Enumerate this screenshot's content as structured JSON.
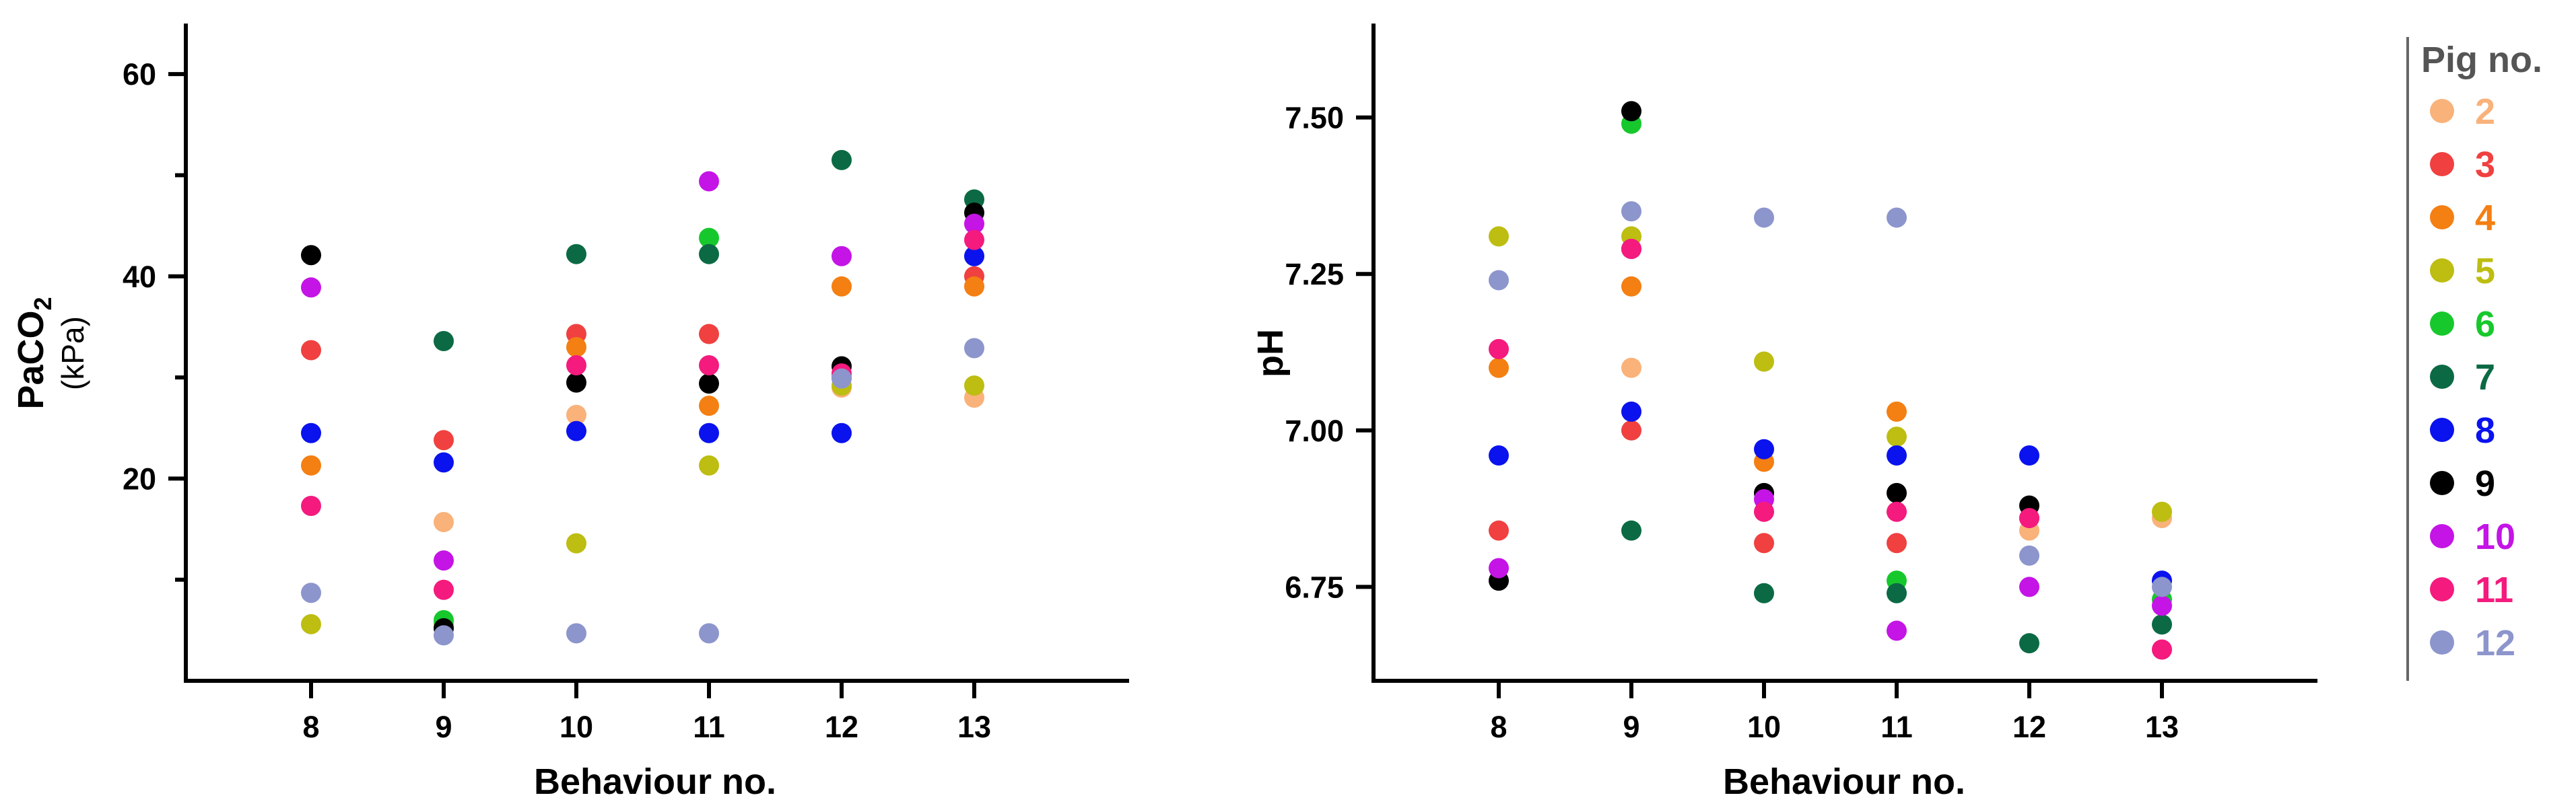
{
  "chart_data": [
    {
      "type": "scatter",
      "title": "",
      "xlabel": "Behaviour no.",
      "ylabel": "PaCO",
      "ylabel_sub": "2",
      "ylabel_unit": "(kPa)",
      "categories": [
        "8",
        "9",
        "10",
        "11",
        "12",
        "13"
      ],
      "x_ticks": [
        "8",
        "9",
        "10",
        "11",
        "12",
        "13"
      ],
      "y_tick_labels": [
        "20",
        "40",
        "60"
      ],
      "y_tick_values": [
        20,
        40,
        60
      ],
      "y_minor_ticks": [
        10,
        30,
        50
      ],
      "ylim": [
        0,
        65
      ],
      "grid": false,
      "series": [
        {
          "name": "2",
          "values": [
            null,
            15.7,
            26.3,
            null,
            29.0,
            28.0
          ]
        },
        {
          "name": "3",
          "values": [
            32.7,
            23.8,
            34.3,
            34.3,
            30.0,
            40.0
          ]
        },
        {
          "name": "4",
          "values": [
            21.3,
            null,
            33.0,
            27.2,
            39.0,
            39.0
          ]
        },
        {
          "name": "5",
          "values": [
            5.6,
            5.6,
            13.6,
            21.3,
            29.2,
            29.2
          ]
        },
        {
          "name": "6",
          "values": [
            null,
            6.0,
            null,
            43.8,
            null,
            null
          ]
        },
        {
          "name": "7",
          "values": [
            null,
            33.6,
            42.2,
            42.2,
            51.5,
            47.6
          ]
        },
        {
          "name": "8",
          "values": [
            24.5,
            21.6,
            24.7,
            24.5,
            24.5,
            42.0
          ]
        },
        {
          "name": "9",
          "values": [
            42.1,
            5.2,
            29.5,
            29.4,
            31.1,
            46.3
          ]
        },
        {
          "name": "10",
          "values": [
            38.9,
            11.9,
            null,
            49.4,
            42.0,
            45.2
          ]
        },
        {
          "name": "11",
          "values": [
            17.3,
            9.0,
            31.2,
            31.2,
            30.4,
            43.6
          ]
        },
        {
          "name": "12",
          "values": [
            8.7,
            4.5,
            4.7,
            4.7,
            29.9,
            32.9
          ]
        }
      ]
    },
    {
      "type": "scatter",
      "title": "",
      "xlabel": "Behaviour no.",
      "ylabel": "pH",
      "categories": [
        "8",
        "9",
        "10",
        "11",
        "12",
        "13"
      ],
      "x_ticks": [
        "8",
        "9",
        "10",
        "11",
        "12",
        "13"
      ],
      "y_tick_labels": [
        "6.75",
        "7.00",
        "7.25",
        "7.50"
      ],
      "y_tick_values": [
        6.75,
        7.0,
        7.25,
        7.5
      ],
      "ylim": [
        6.6,
        7.65
      ],
      "grid": false,
      "series": [
        {
          "name": "2",
          "values": [
            null,
            7.1,
            null,
            null,
            6.84,
            6.86
          ]
        },
        {
          "name": "3",
          "values": [
            6.84,
            7.0,
            6.82,
            6.82,
            6.86,
            null
          ]
        },
        {
          "name": "4",
          "values": [
            7.1,
            7.23,
            6.95,
            7.03,
            null,
            null
          ]
        },
        {
          "name": "5",
          "values": [
            7.31,
            7.31,
            7.11,
            6.99,
            null,
            6.87
          ]
        },
        {
          "name": "6",
          "values": [
            null,
            7.49,
            null,
            6.76,
            null,
            6.73
          ]
        },
        {
          "name": "7",
          "values": [
            null,
            6.84,
            6.74,
            6.74,
            6.66,
            6.69
          ]
        },
        {
          "name": "8",
          "values": [
            6.96,
            7.03,
            6.97,
            6.96,
            6.96,
            6.76
          ]
        },
        {
          "name": "9",
          "values": [
            6.76,
            7.51,
            6.9,
            6.9,
            6.88,
            null
          ]
        },
        {
          "name": "10",
          "values": [
            6.78,
            7.29,
            6.89,
            6.68,
            6.75,
            6.72
          ]
        },
        {
          "name": "11",
          "values": [
            7.13,
            7.29,
            6.87,
            6.87,
            6.86,
            6.65
          ]
        },
        {
          "name": "12",
          "values": [
            7.24,
            7.35,
            7.34,
            7.34,
            6.8,
            6.75
          ]
        }
      ]
    }
  ],
  "legend": {
    "title": "Pig no.",
    "placement": "right",
    "items": [
      {
        "label": "2",
        "color": "#F9B27A"
      },
      {
        "label": "3",
        "color": "#F04040"
      },
      {
        "label": "4",
        "color": "#F47F12"
      },
      {
        "label": "5",
        "color": "#BDBD12"
      },
      {
        "label": "6",
        "color": "#17C82C"
      },
      {
        "label": "7",
        "color": "#0B6A44"
      },
      {
        "label": "8",
        "color": "#0A12EE"
      },
      {
        "label": "9",
        "color": "#000000"
      },
      {
        "label": "10",
        "color": "#C414E6"
      },
      {
        "label": "11",
        "color": "#F41A7E"
      },
      {
        "label": "12",
        "color": "#8C95CC"
      }
    ]
  }
}
